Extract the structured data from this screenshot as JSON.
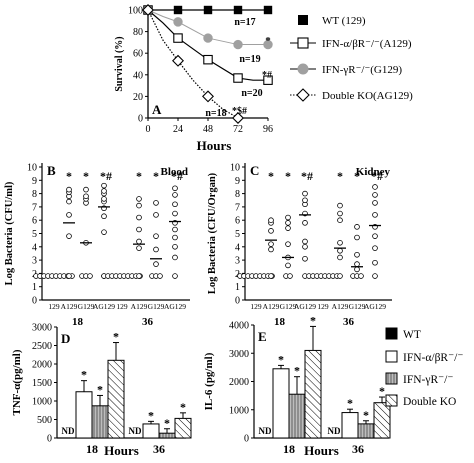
{
  "chart_data": [
    {
      "panel": "A",
      "type": "line",
      "xlabel": "Hours",
      "ylabel": "Survival (%)",
      "xlim": [
        0,
        96
      ],
      "ylim": [
        0,
        100
      ],
      "xticks": [
        0,
        24,
        48,
        72,
        96
      ],
      "yticks": [
        0,
        20,
        40,
        60,
        80,
        100
      ],
      "series": [
        {
          "name": "WT (129)",
          "marker": "filled-square",
          "line": "solid",
          "x": [
            0,
            12,
            24,
            36,
            48,
            60,
            72,
            84,
            96
          ],
          "y": [
            100,
            100,
            100,
            100,
            100,
            100,
            100,
            100,
            100
          ],
          "n_label": "n=17"
        },
        {
          "name": "IFN-α/βR⁻/⁻(A129)",
          "marker": "open-square",
          "line": "solid",
          "x": [
            0,
            12,
            24,
            48,
            72,
            84,
            96
          ],
          "y": [
            100,
            88,
            74,
            54,
            37,
            35,
            35
          ],
          "n_label": "n=20"
        },
        {
          "name": "IFN-γR⁻/⁻(G129)",
          "marker": "gray-circle",
          "line": "solid",
          "x": [
            0,
            12,
            24,
            48,
            72,
            96
          ],
          "y": [
            100,
            94,
            89,
            74,
            68,
            68
          ],
          "n_label": "n=19"
        },
        {
          "name": "Double KO(AG129)",
          "marker": "open-diamond",
          "line": "dotted",
          "x": [
            0,
            12,
            24,
            36,
            48,
            60,
            72
          ],
          "y": [
            100,
            72,
            53,
            35,
            20,
            8,
            0
          ],
          "n_label": "n=18"
        }
      ],
      "annotations": [
        "*",
        "*#",
        "*$#"
      ]
    },
    {
      "panel": "B",
      "type": "scatter",
      "title": "Blood",
      "ylabel": "Log Bacteria (CFU/ml)",
      "ylim": [
        0,
        10
      ],
      "yticks": [
        0,
        1,
        2,
        3,
        4,
        5,
        6,
        7,
        8,
        9,
        10
      ],
      "categories": [
        "129",
        "A129",
        "G129",
        "AG129",
        "129",
        "A129",
        "G129",
        "AG129"
      ],
      "groups": [
        "18",
        "36"
      ],
      "points": [
        [
          1.8,
          1.8,
          1.8,
          1.8,
          1.8,
          1.8,
          1.8,
          1.8,
          1.8,
          1.8
        ],
        [
          1.8,
          4.8,
          6.4,
          7.4,
          7.8,
          8.1,
          8.3
        ],
        [
          1.8,
          1.8,
          1.8,
          4.3,
          7.3,
          7.6,
          7.8,
          8.3
        ],
        [
          1.8,
          5.1,
          6.3,
          6.9,
          7.4,
          7.6,
          8.0,
          8.2,
          8.6
        ],
        [
          1.8,
          1.8,
          1.8,
          1.8,
          1.8,
          1.8,
          1.8,
          1.8,
          1.8,
          1.8
        ],
        [
          1.8,
          3.9,
          4.4,
          5.3,
          6.2,
          7.1,
          7.6
        ],
        [
          1.8,
          1.8,
          1.8,
          2.7,
          3.8,
          4.8,
          6.4,
          7.3
        ],
        [
          1.8,
          3.2,
          4.0,
          4.7,
          5.3,
          5.8,
          6.5,
          7.2,
          7.9,
          8.4
        ]
      ],
      "means": [
        1.8,
        5.8,
        4.3,
        7.0,
        1.8,
        4.2,
        3.1,
        5.9
      ],
      "annotations": [
        "*",
        "*",
        "*#",
        "*",
        "*",
        "*#"
      ]
    },
    {
      "panel": "C",
      "type": "scatter",
      "title": "Kidney",
      "ylabel": "Log Bacteria (CFU/Organ)",
      "ylim": [
        0,
        10
      ],
      "yticks": [
        0,
        1,
        2,
        3,
        4,
        5,
        6,
        7,
        8,
        9,
        10
      ],
      "categories": [
        "129",
        "A129",
        "G129",
        "AG129",
        "129",
        "A129",
        "G129",
        "AG129"
      ],
      "groups": [
        "18",
        "36"
      ],
      "points": [
        [
          1.8,
          1.8,
          1.8,
          1.8,
          1.8,
          1.8,
          1.8,
          1.8,
          1.8
        ],
        [
          1.8,
          3.8,
          4.2,
          5.2,
          5.8,
          6.0
        ],
        [
          1.8,
          1.8,
          2.6,
          3.2,
          4.2,
          5.4,
          5.8,
          6.2
        ],
        [
          1.8,
          3.1,
          4.0,
          4.4,
          5.8,
          6.5,
          7.2,
          7.5,
          8.0
        ],
        [
          1.8,
          1.8,
          1.8,
          1.8,
          1.8,
          1.8,
          1.8,
          1.8
        ],
        [
          1.8,
          3.2,
          3.7,
          4.3,
          6.0,
          6.5,
          7.1
        ],
        [
          1.8,
          1.8,
          1.8,
          2.3,
          2.7,
          3.4,
          4.7,
          5.5
        ],
        [
          1.8,
          2.8,
          3.9,
          4.8,
          5.5,
          6.4,
          7.3,
          7.9,
          8.5
        ]
      ],
      "means": [
        1.8,
        4.5,
        3.2,
        6.4,
        1.8,
        3.9,
        2.5,
        5.6
      ],
      "annotations": [
        "*",
        "*",
        "*#",
        "*",
        "*",
        "*#"
      ]
    },
    {
      "panel": "D",
      "type": "bar",
      "xlabel": "Hours",
      "ylabel": "TNF-α(pg/ml)",
      "ylim": [
        0,
        3000
      ],
      "yticks": [
        0,
        500,
        1000,
        1500,
        2000,
        2500,
        3000
      ],
      "groups": [
        "18",
        "36"
      ],
      "series": [
        {
          "name": "WT",
          "values": [
            null,
            null
          ],
          "value_labels": [
            "ND",
            "ND"
          ]
        },
        {
          "name": "IFN-α/βR⁻/⁻",
          "values": [
            1250,
            380
          ],
          "errors": [
            300,
            70
          ]
        },
        {
          "name": "IFN-γR⁻/⁻",
          "values": [
            870,
            130
          ],
          "errors": [
            280,
            120
          ]
        },
        {
          "name": "Double KO",
          "values": [
            2100,
            530
          ],
          "errors": [
            480,
            150
          ]
        }
      ],
      "annotations": [
        "*"
      ]
    },
    {
      "panel": "E",
      "type": "bar",
      "xlabel": "Hours",
      "ylabel": "IL-6 (pg/ml)",
      "ylim": [
        0,
        4000
      ],
      "yticks": [
        0,
        1000,
        2000,
        3000,
        4000
      ],
      "groups": [
        "18",
        "36"
      ],
      "series": [
        {
          "name": "WT",
          "values": [
            null,
            null
          ],
          "value_labels": [
            "ND",
            "ND"
          ]
        },
        {
          "name": "IFN-α/βR⁻/⁻",
          "values": [
            2450,
            900
          ],
          "errors": [
            120,
            120
          ]
        },
        {
          "name": "IFN-γR⁻/⁻",
          "values": [
            1550,
            500
          ],
          "errors": [
            620,
            110
          ]
        },
        {
          "name": "Double KO",
          "values": [
            3100,
            1250
          ],
          "errors": [
            850,
            200
          ]
        }
      ],
      "annotations": [
        "*"
      ]
    }
  ],
  "colors": {
    "gray_marker": "#a0a0a0",
    "ink": "#000000"
  }
}
